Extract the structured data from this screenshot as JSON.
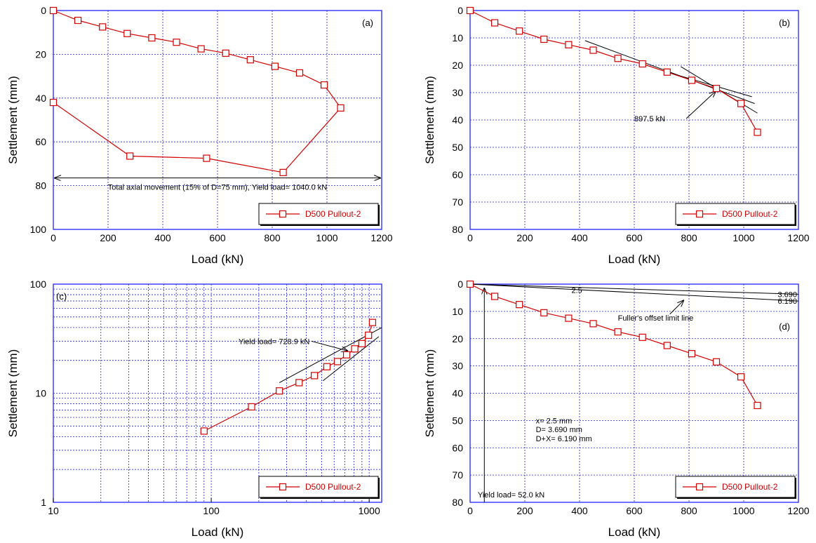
{
  "chart_data": [
    {
      "type": "line",
      "panel_label": "(a)",
      "xlabel": "Load (kN)",
      "ylabel": "Settlement (mm)",
      "xlim": [
        0,
        1200
      ],
      "ylim": [
        0,
        100
      ],
      "y_inverted": true,
      "xscale": "linear",
      "yscale": "linear",
      "grid": true,
      "xticks": [
        "0",
        "200",
        "400",
        "600",
        "800",
        "1000",
        "1200"
      ],
      "yticks": [
        "0",
        "20",
        "40",
        "60",
        "80",
        "100"
      ],
      "legend_position": "bottom-right",
      "series": [
        {
          "name": "D500 Pullout-2",
          "x": [
            0,
            90,
            180,
            270,
            360,
            450,
            540,
            630,
            720,
            810,
            900,
            990,
            1050,
            840,
            560,
            280,
            0
          ],
          "y": [
            0,
            4.5,
            7.5,
            10.5,
            12.5,
            14.5,
            17.5,
            19.5,
            22.5,
            25.5,
            28.5,
            34,
            44.5,
            74,
            67.5,
            66.5,
            42
          ]
        }
      ],
      "annotations": [
        {
          "text": "Total axial movement (15% of D=75 mm), Yield load= 1040.0 kN"
        }
      ]
    },
    {
      "type": "line",
      "panel_label": "(b)",
      "xlabel": "Load (kN)",
      "ylabel": "Settlement (mm)",
      "xlim": [
        0,
        1200
      ],
      "ylim": [
        0,
        80
      ],
      "y_inverted": true,
      "xscale": "linear",
      "yscale": "linear",
      "grid": true,
      "xticks": [
        "0",
        "200",
        "400",
        "600",
        "800",
        "1000",
        "1200"
      ],
      "yticks": [
        "0",
        "10",
        "20",
        "30",
        "40",
        "50",
        "60",
        "70",
        "80"
      ],
      "legend_position": "bottom-right",
      "series": [
        {
          "name": "D500 Pullout-2",
          "x": [
            0,
            90,
            180,
            270,
            360,
            450,
            540,
            630,
            720,
            810,
            900,
            990,
            1050
          ],
          "y": [
            0,
            4.5,
            7.5,
            10.5,
            12.5,
            14.5,
            17.5,
            19.5,
            22.5,
            25.5,
            28.5,
            34,
            44.5
          ]
        }
      ],
      "annotations": [
        {
          "text": "897.5 kN"
        }
      ]
    },
    {
      "type": "line",
      "panel_label": "(c)",
      "xlabel": "Load (kN)",
      "ylabel": "Settlement (mm)",
      "xlim": [
        10,
        1200
      ],
      "ylim": [
        1,
        100
      ],
      "y_inverted": false,
      "xscale": "log",
      "yscale": "log",
      "grid": true,
      "xticks": [
        "10",
        "100",
        "1000"
      ],
      "yticks": [
        "1",
        "10",
        "100"
      ],
      "legend_position": "bottom-right",
      "series": [
        {
          "name": "D500 Pullout-2",
          "x": [
            90,
            180,
            270,
            360,
            450,
            540,
            630,
            720,
            810,
            900,
            990,
            1050
          ],
          "y": [
            4.5,
            7.5,
            10.5,
            12.5,
            14.5,
            17.5,
            19.5,
            22.5,
            25.5,
            28.5,
            34,
            44.5
          ]
        }
      ],
      "annotations": [
        {
          "text": "Yield load= 728.9 kN"
        }
      ]
    },
    {
      "type": "line",
      "panel_label": "(d)",
      "xlabel": "Load (kN)",
      "ylabel": "Settlement (mm)",
      "xlim": [
        0,
        1200
      ],
      "ylim": [
        0,
        80
      ],
      "y_inverted": true,
      "xscale": "linear",
      "yscale": "linear",
      "grid": true,
      "xticks": [
        "0",
        "200",
        "400",
        "600",
        "800",
        "1000",
        "1200"
      ],
      "yticks": [
        "0",
        "10",
        "20",
        "30",
        "40",
        "50",
        "60",
        "70",
        "80"
      ],
      "legend_position": "bottom-right",
      "series": [
        {
          "name": "D500 Pullout-2",
          "x": [
            0,
            90,
            180,
            270,
            360,
            450,
            540,
            630,
            720,
            810,
            900,
            990,
            1050
          ],
          "y": [
            0,
            4.5,
            7.5,
            10.5,
            12.5,
            14.5,
            17.5,
            19.5,
            22.5,
            25.5,
            28.5,
            34,
            44.5
          ]
        }
      ],
      "annotations": [
        {
          "text": "3.690"
        },
        {
          "text": "2.5"
        },
        {
          "text": "6.190"
        },
        {
          "text": "Fuller's offset limit line"
        },
        {
          "text": "x= 2.5 mm"
        },
        {
          "text": "D= 3.690 mm"
        },
        {
          "text": "D+X= 6.190 mm"
        },
        {
          "text": "Yield load= 52.0 kN"
        }
      ]
    }
  ],
  "colors": {
    "series": "#d40000",
    "grid": "#2222cc",
    "frame": "#3030ff",
    "annotation": "#000000"
  }
}
